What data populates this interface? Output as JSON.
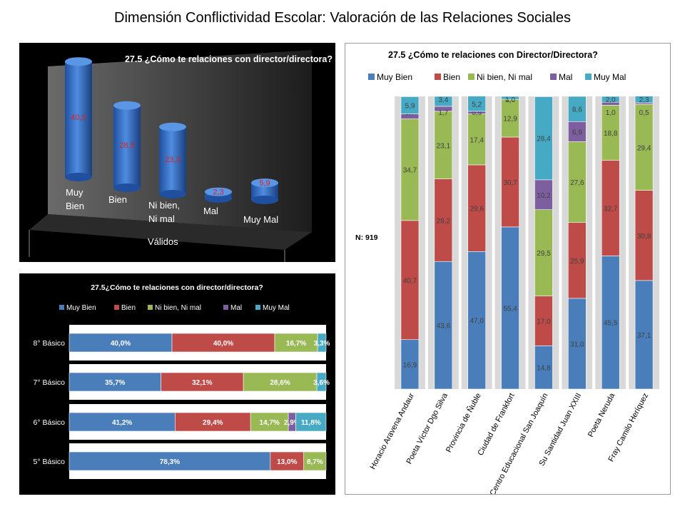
{
  "page": {
    "title": "Dimensión Conflictividad Escolar: Valoración de las Relaciones Sociales"
  },
  "colors": {
    "muy_bien": "#4a7ebb",
    "bien": "#be4b48",
    "ni_bien": "#98b954",
    "mal": "#7d5fa0",
    "muy_mal": "#46aac5",
    "label_red": "#e02020"
  },
  "chart_data": [
    {
      "id": "cylinder",
      "type": "bar",
      "title": "27.5 ¿Cómo te relaciones con director/directora?",
      "categories": [
        [
          "Muy",
          "Bien"
        ],
        [
          "Bien"
        ],
        [
          "Ni bien,",
          "Ni mal"
        ],
        [
          "Mal"
        ],
        [
          "Muy Mal"
        ]
      ],
      "group_label": "Válidos",
      "values": [
        "40,0",
        "28,5",
        "23,3",
        "2,3",
        "5,9"
      ],
      "ylim": [
        0,
        45
      ],
      "grid": false
    },
    {
      "id": "hbar",
      "type": "bar",
      "orientation": "horizontal-stacked",
      "title": "27.5¿Cómo te relaciones con director/directora?",
      "legend": [
        "Muy Bien",
        "Bien",
        "Ni bien, Ni mal",
        "Mal",
        "Muy Mal"
      ],
      "legend_position": "top",
      "categories": [
        "8° Básico",
        "7° Básico",
        "6° Básico",
        "5° Básico"
      ],
      "series": [
        {
          "name": "Muy Bien",
          "values": [
            40.0,
            35.7,
            41.2,
            78.3
          ],
          "labels": [
            "40,0%",
            "35,7%",
            "41,2%",
            "78,3%"
          ]
        },
        {
          "name": "Bien",
          "values": [
            40.0,
            32.1,
            29.4,
            13.0
          ],
          "labels": [
            "40,0%",
            "32,1%",
            "29,4%",
            "13,0%"
          ]
        },
        {
          "name": "Ni bien, Ni mal",
          "values": [
            16.7,
            28.6,
            14.7,
            8.7
          ],
          "labels": [
            "16,7%",
            "28,6%",
            "14,7%",
            "8,7%"
          ]
        },
        {
          "name": "Mal",
          "values": [
            0,
            0,
            2.9,
            0
          ],
          "labels": [
            "",
            "",
            "2,9%",
            ""
          ]
        },
        {
          "name": "Muy Mal",
          "values": [
            3.3,
            3.6,
            11.8,
            0
          ],
          "labels": [
            "3,3%",
            "3,6%",
            "11,8%",
            ""
          ]
        }
      ]
    },
    {
      "id": "stacked",
      "type": "bar",
      "orientation": "vertical-stacked-100",
      "title": "27.5 ¿Cómo te relaciones con Director/Directora?",
      "legend": [
        "Muy Bien",
        "Bien",
        "Ni bien, Ni mal",
        "Mal",
        "Muy Mal"
      ],
      "legend_position": "top",
      "side_note": "N: 919",
      "categories": [
        "Horacio Aravena Andaur",
        "Poeta Víctor Dgo Silva",
        "Provincia de Ñuble",
        "Ciudad de Frankfort",
        "Centro Educacional San Joaquín",
        "Su Santidad Juan XXIII",
        "Poeta Neruda",
        "Fray Camilo Heríquez"
      ],
      "series": [
        {
          "name": "Muy Bien",
          "values": [
            16.9,
            43.6,
            47.0,
            55.4,
            14.8,
            31.0,
            45.5,
            37.1
          ],
          "labels": [
            "16,9",
            "43,6",
            "47,0",
            "55,4",
            "14,8",
            "31,0",
            "45,5",
            "37,1"
          ]
        },
        {
          "name": "Bien",
          "values": [
            40.7,
            28.2,
            29.6,
            30.7,
            17.0,
            25.9,
            32.7,
            30.8
          ],
          "labels": [
            "40,7",
            "28,2",
            "29,6",
            "30,7",
            "17,0",
            "25,9",
            "32,7",
            "30,8"
          ]
        },
        {
          "name": "Ni bien, Ni mal",
          "values": [
            34.7,
            23.1,
            17.4,
            12.9,
            29.5,
            27.6,
            18.8,
            29.4
          ],
          "labels": [
            "34,7",
            "23,1",
            "17,4",
            "12,9",
            "29,5",
            "27,6",
            "18,8",
            "29,4"
          ]
        },
        {
          "name": "Mal",
          "values": [
            1.7,
            1.7,
            0.9,
            0.0,
            10.2,
            6.9,
            1.0,
            0.5
          ],
          "labels": [
            "1,7",
            "1,7",
            "0,9",
            "0,0",
            "10,2",
            "6,9",
            "1,0",
            "0,5"
          ]
        },
        {
          "name": "Muy Mal",
          "values": [
            5.9,
            3.4,
            5.2,
            1.0,
            28.4,
            8.6,
            2.0,
            2.3
          ],
          "labels": [
            "5,9",
            "3,4",
            "5,2",
            "1,0",
            "28,4",
            "8,6",
            "2,0",
            "2,3"
          ]
        }
      ],
      "ylim": [
        0,
        100
      ]
    }
  ]
}
